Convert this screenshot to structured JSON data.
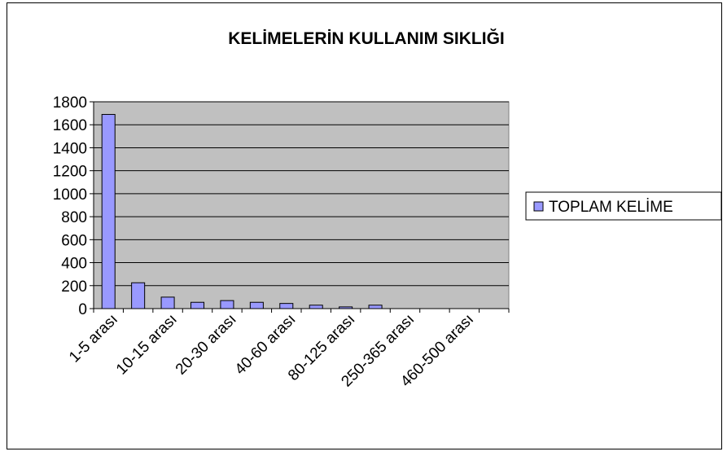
{
  "chart_data": {
    "type": "bar",
    "title": "KELİMELERİN KULLANIM SIKLIĞI",
    "categories": [
      "1-5 arası",
      null,
      "10-15 arası",
      null,
      "20-30 arası",
      null,
      "40-60 arası",
      null,
      "80-125 arası",
      null,
      "250-365 arası",
      null,
      "460-500 arası",
      null
    ],
    "series": [
      {
        "name": "TOPLAM KELİME",
        "color": "#9999ff",
        "values": [
          1690,
          225,
          100,
          55,
          70,
          55,
          45,
          30,
          15,
          30,
          0,
          0,
          0,
          0
        ]
      }
    ],
    "ylim": [
      0,
      1800
    ],
    "yticks": [
      0,
      200,
      400,
      600,
      800,
      1000,
      1200,
      1400,
      1600,
      1800
    ],
    "grid": true,
    "legend": "right"
  }
}
